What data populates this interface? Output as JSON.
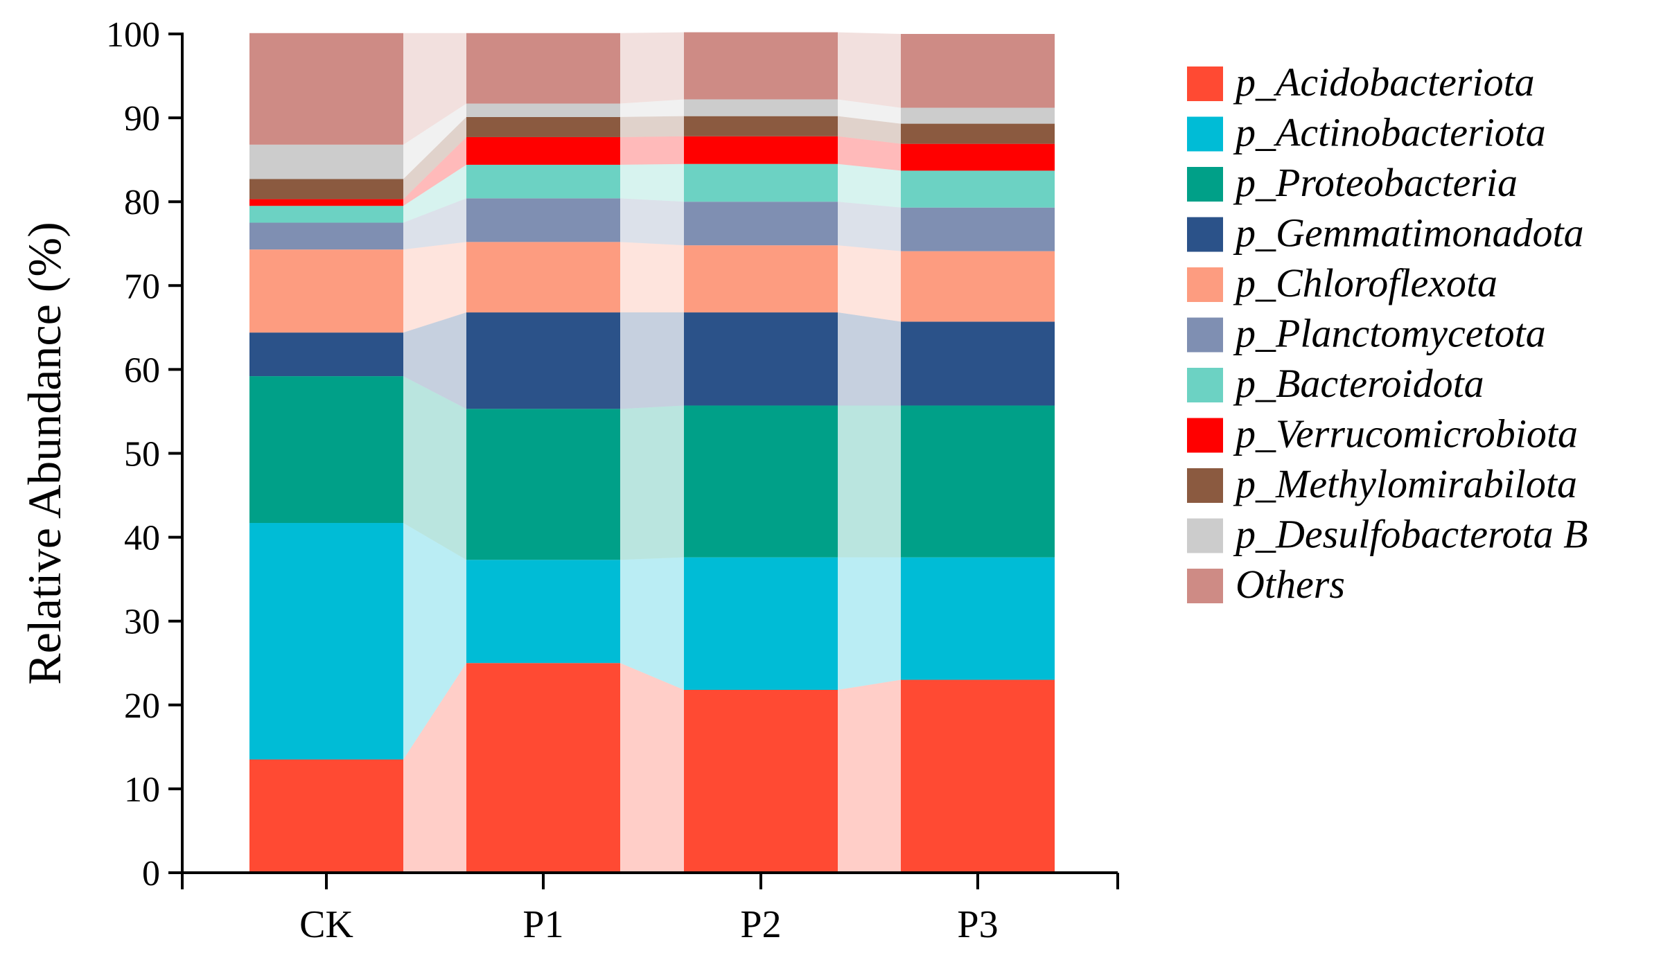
{
  "chart_data": {
    "type": "bar",
    "stacked": true,
    "show_flow_bands": true,
    "title": "",
    "xlabel": "",
    "ylabel": "Relative Abundance (%)",
    "ylim": [
      0,
      100
    ],
    "yticks": [
      0,
      10,
      20,
      30,
      40,
      50,
      60,
      70,
      80,
      90,
      100
    ],
    "categories": [
      "CK",
      "P1",
      "P2",
      "P3"
    ],
    "legend_position": "right",
    "series": [
      {
        "name": "p_Acidobacteriota",
        "color": "#FF4A33",
        "values": [
          13.5,
          25.0,
          21.8,
          23.0
        ]
      },
      {
        "name": "p_Actinobacteriota",
        "color": "#00BCD6",
        "values": [
          28.2,
          12.3,
          15.8,
          14.6
        ]
      },
      {
        "name": "p_Proteobacteria",
        "color": "#00A088",
        "values": [
          17.5,
          18.0,
          18.1,
          18.1
        ]
      },
      {
        "name": "p_Gemmatimonadota",
        "color": "#2B5289",
        "values": [
          5.2,
          11.5,
          11.1,
          10.0
        ]
      },
      {
        "name": "p_Chloroflexota",
        "color": "#FD9C80",
        "values": [
          9.9,
          8.4,
          8.0,
          8.4
        ]
      },
      {
        "name": "p_Planctomycetota",
        "color": "#7F8FB2",
        "values": [
          3.2,
          5.2,
          5.2,
          5.2
        ]
      },
      {
        "name": "p_Bacteroidota",
        "color": "#6CD2C3",
        "values": [
          2.0,
          4.0,
          4.5,
          4.4
        ]
      },
      {
        "name": "p_Verrucomicrobiota",
        "color": "#FF0000",
        "values": [
          0.8,
          3.3,
          3.3,
          3.2
        ]
      },
      {
        "name": "p_Methylomirabilota",
        "color": "#8B5A40",
        "values": [
          2.4,
          2.4,
          2.4,
          2.4
        ]
      },
      {
        "name": "p_Desulfobacterota B",
        "color": "#CCCCCC",
        "values": [
          4.1,
          1.6,
          2.0,
          1.9
        ]
      },
      {
        "name": "Others",
        "color": "#CE8B85",
        "values": [
          13.3,
          8.4,
          8.0,
          8.8
        ]
      }
    ]
  }
}
